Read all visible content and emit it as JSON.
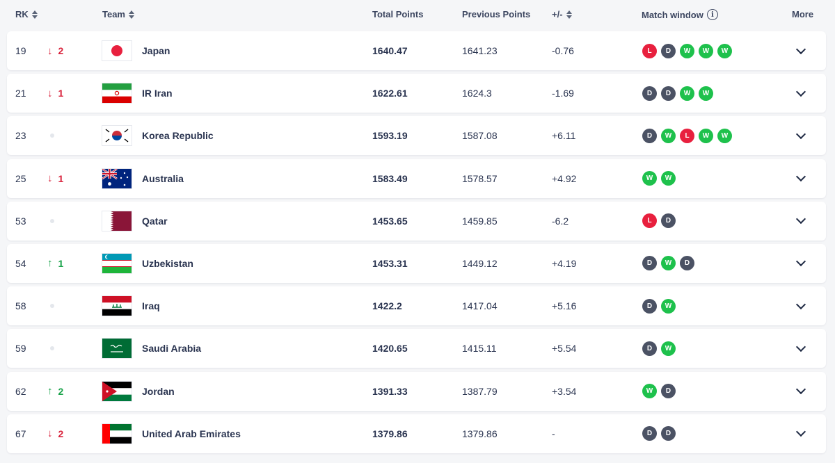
{
  "header": {
    "rank": "RK",
    "team": "Team",
    "total": "Total Points",
    "previous": "Previous Points",
    "diff": "+/-",
    "window": "Match window",
    "more": "More"
  },
  "colors": {
    "win": "#1ec14c",
    "loss": "#e8203e",
    "draw": "#4b5264",
    "down": "#d9233c",
    "up": "#1aa34a"
  },
  "rows": [
    {
      "rank": "19",
      "dir": "down",
      "move": "2",
      "team": "Japan",
      "flag": "japan",
      "total": "1640.47",
      "prev": "1641.23",
      "diff": "-0.76",
      "results": [
        "L",
        "D",
        "W",
        "W",
        "W"
      ]
    },
    {
      "rank": "21",
      "dir": "down",
      "move": "1",
      "team": "IR Iran",
      "flag": "iran",
      "total": "1622.61",
      "prev": "1624.3",
      "diff": "-1.69",
      "results": [
        "D",
        "D",
        "W",
        "W"
      ]
    },
    {
      "rank": "23",
      "dir": "none",
      "move": "",
      "team": "Korea Republic",
      "flag": "korea",
      "total": "1593.19",
      "prev": "1587.08",
      "diff": "+6.11",
      "results": [
        "D",
        "W",
        "L",
        "W",
        "W"
      ]
    },
    {
      "rank": "25",
      "dir": "down",
      "move": "1",
      "team": "Australia",
      "flag": "australia",
      "total": "1583.49",
      "prev": "1578.57",
      "diff": "+4.92",
      "results": [
        "W",
        "W"
      ]
    },
    {
      "rank": "53",
      "dir": "none",
      "move": "",
      "team": "Qatar",
      "flag": "qatar",
      "total": "1453.65",
      "prev": "1459.85",
      "diff": "-6.2",
      "results": [
        "L",
        "D"
      ]
    },
    {
      "rank": "54",
      "dir": "up",
      "move": "1",
      "team": "Uzbekistan",
      "flag": "uzbekistan",
      "total": "1453.31",
      "prev": "1449.12",
      "diff": "+4.19",
      "results": [
        "D",
        "W",
        "D"
      ]
    },
    {
      "rank": "58",
      "dir": "none",
      "move": "",
      "team": "Iraq",
      "flag": "iraq",
      "total": "1422.2",
      "prev": "1417.04",
      "diff": "+5.16",
      "results": [
        "D",
        "W"
      ]
    },
    {
      "rank": "59",
      "dir": "none",
      "move": "",
      "team": "Saudi Arabia",
      "flag": "saudi",
      "total": "1420.65",
      "prev": "1415.11",
      "diff": "+5.54",
      "results": [
        "D",
        "W"
      ]
    },
    {
      "rank": "62",
      "dir": "up",
      "move": "2",
      "team": "Jordan",
      "flag": "jordan",
      "total": "1391.33",
      "prev": "1387.79",
      "diff": "+3.54",
      "results": [
        "W",
        "D"
      ]
    },
    {
      "rank": "67",
      "dir": "down",
      "move": "2",
      "team": "United Arab Emirates",
      "flag": "uae",
      "total": "1379.86",
      "prev": "1379.86",
      "diff": "-",
      "results": [
        "D",
        "D"
      ]
    }
  ]
}
